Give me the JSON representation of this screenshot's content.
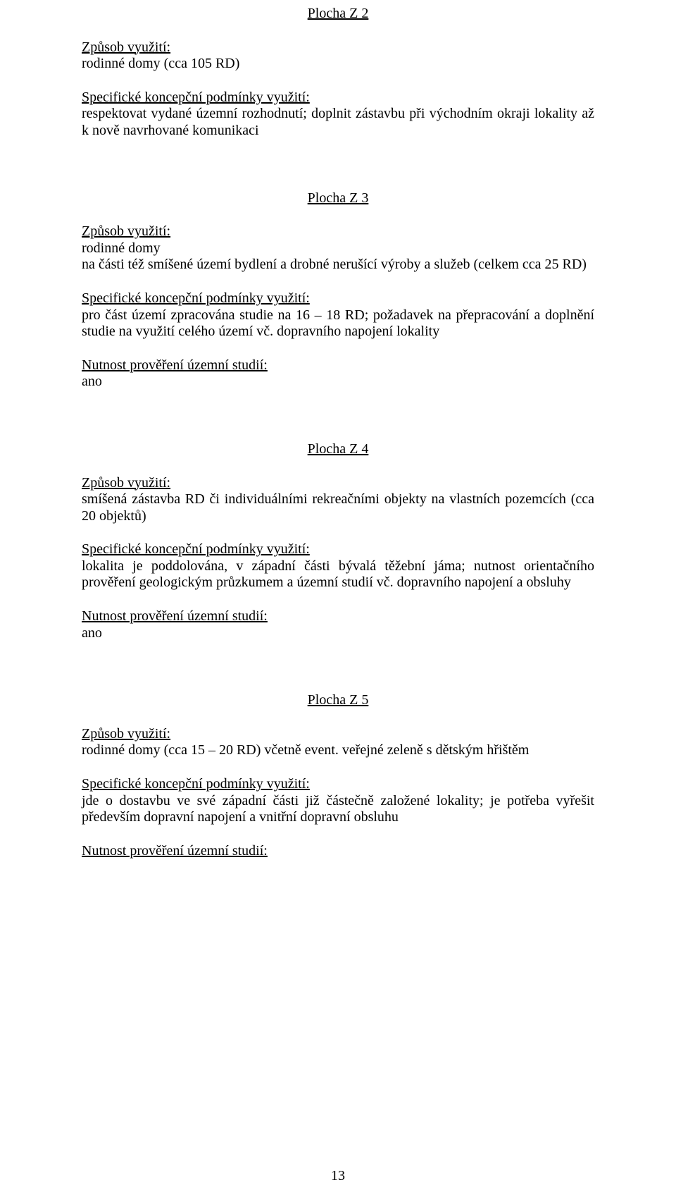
{
  "page_number": "13",
  "z2": {
    "heading": "Plocha Z 2",
    "h_usage": "Způsob využití:",
    "usage": "rodinné domy (cca 105 RD)",
    "h_cond": "Specifické koncepční podmínky využití:",
    "cond": "respektovat vydané územní rozhodnutí; doplnit zástavbu při východním okraji lokality až k nově navrhované komunikaci"
  },
  "z3": {
    "heading": "Plocha Z 3",
    "h_usage": "Způsob využití:",
    "usage_l1": "rodinné domy",
    "usage_l2": "na části též smíšené území bydlení a drobné nerušící výroby a služeb (celkem cca 25 RD)",
    "h_cond": "Specifické koncepční podmínky využití:",
    "cond": "pro část území zpracována studie na 16 – 18 RD; požadavek na přepracování a doplnění studie na využití celého území vč. dopravního napojení lokality",
    "h_study": "Nutnost prověření územní studií:",
    "study": "ano"
  },
  "z4": {
    "heading": "Plocha Z 4",
    "h_usage": "Způsob využití:",
    "usage": "smíšená zástavba RD či individuálními rekreačními objekty na vlastních pozemcích (cca 20 objektů)",
    "h_cond": "Specifické koncepční podmínky využití:",
    "cond": "lokalita je poddolována, v západní části bývalá těžební jáma; nutnost orientačního prověření geologickým průzkumem a územní studií vč. dopravního napojení a obsluhy",
    "h_study": "Nutnost prověření územní studií:",
    "study": "ano"
  },
  "z5": {
    "heading": "Plocha Z 5",
    "h_usage": "Způsob využití:",
    "usage": "rodinné domy (cca 15 – 20 RD) včetně event. veřejné zeleně s dětským hřištěm",
    "h_cond": "Specifické koncepční podmínky využití:",
    "cond": "jde o dostavbu ve své západní části již částečně založené lokality; je potřeba vyřešit především dopravní napojení a vnitřní dopravní obsluhu",
    "h_study": "Nutnost prověření územní studií:"
  }
}
